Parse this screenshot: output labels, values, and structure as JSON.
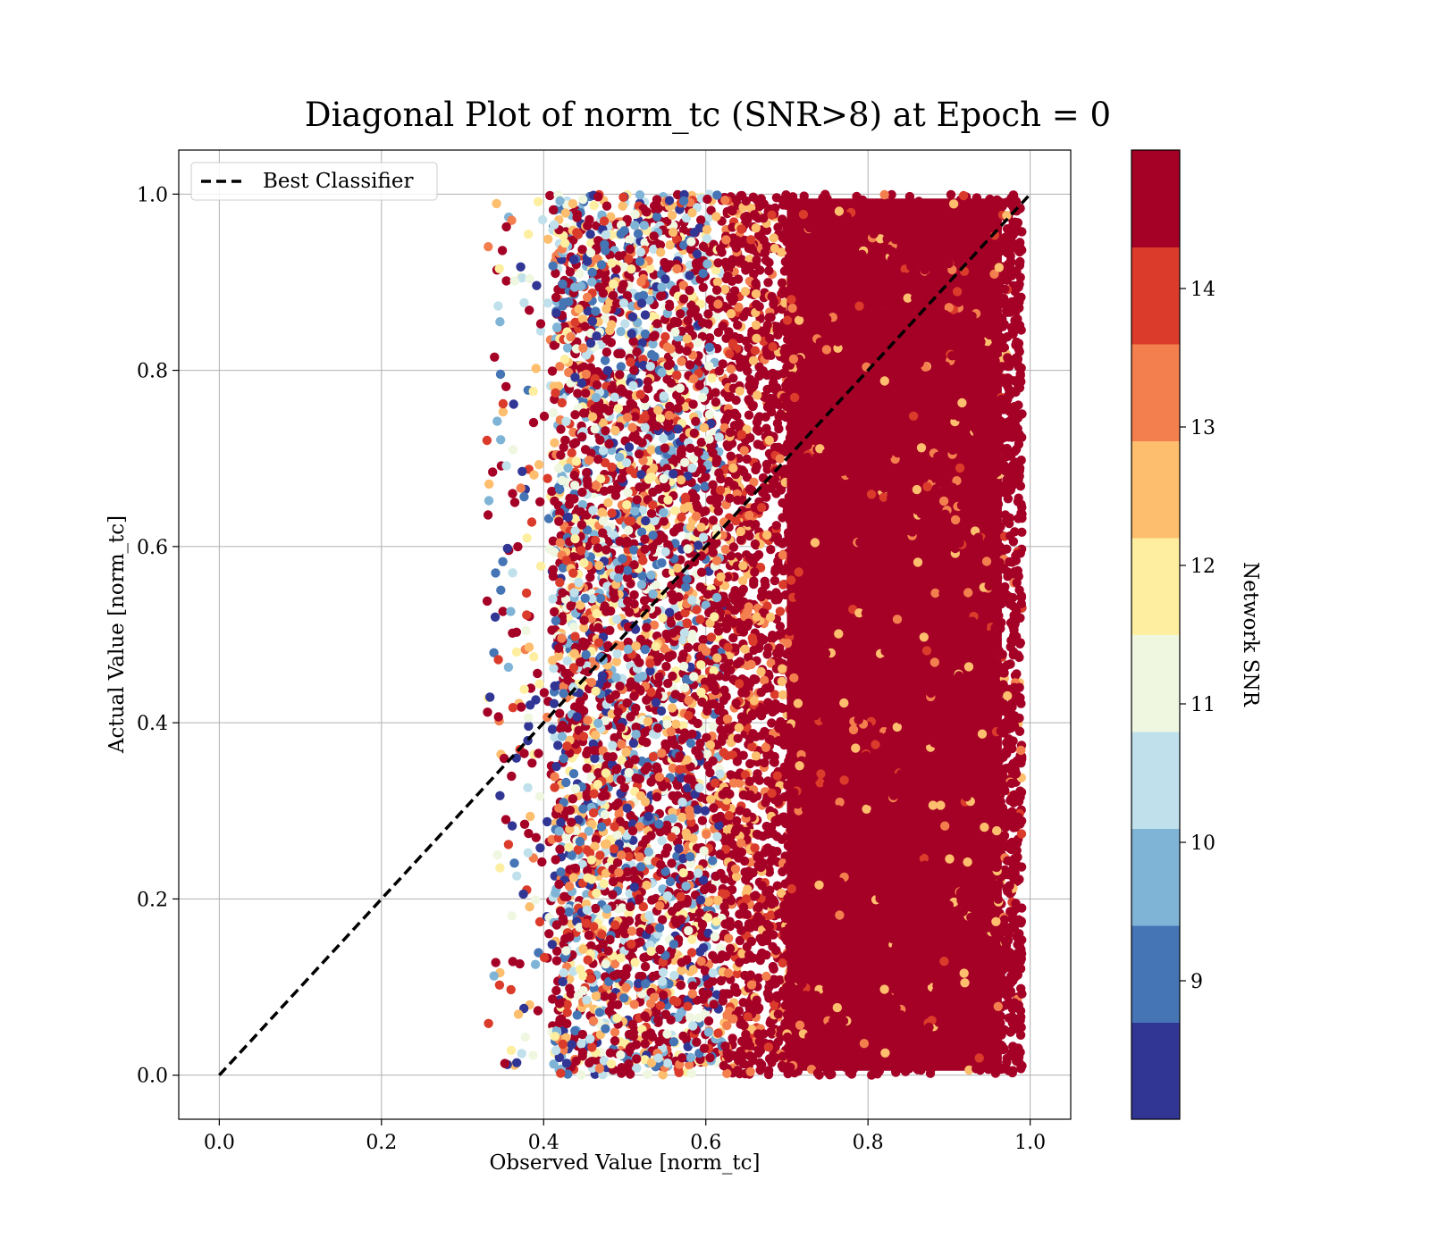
{
  "chart_data": {
    "type": "scatter",
    "title": "Diagonal Plot of norm_tc (SNR>8) at Epoch = 0",
    "xlabel": "Observed Value [norm_tc]",
    "ylabel": "Actual Value [norm_tc]",
    "xlim": [
      -0.05,
      1.05
    ],
    "ylim": [
      -0.05,
      1.05
    ],
    "xticks": [
      "0.0",
      "0.2",
      "0.4",
      "0.6",
      "0.8",
      "1.0"
    ],
    "yticks": [
      "0.0",
      "0.2",
      "0.4",
      "0.6",
      "0.8",
      "1.0"
    ],
    "grid": true,
    "legend": {
      "placement": "upper-left",
      "entries": [
        "Best Classifier"
      ]
    },
    "reference_line": {
      "name": "Best Classifier",
      "style": "dashed",
      "color": "#000000",
      "x": [
        0.0,
        1.0
      ],
      "y": [
        0.0,
        1.0
      ]
    },
    "scatter_description": {
      "x_range": [
        0.33,
        0.99
      ],
      "y_range": [
        0.0,
        1.0
      ],
      "note": "low SNR points concentrated at x 0.35-0.62, high SNR (dark red) dominant for x > 0.62"
    },
    "colorbar": {
      "label": "Network SNR",
      "range": [
        8,
        15
      ],
      "ticks": [
        "9",
        "10",
        "11",
        "12",
        "13",
        "14"
      ],
      "levels": [
        8,
        8.7,
        9.4,
        10.1,
        10.8,
        11.5,
        12.2,
        12.9,
        13.6,
        14.3,
        15
      ],
      "colors": [
        "#313695",
        "#4575b4",
        "#80b4d6",
        "#c0e1ec",
        "#eff7e0",
        "#feeea0",
        "#fdbe6d",
        "#f47f4e",
        "#db3b2b",
        "#a50026"
      ]
    }
  }
}
